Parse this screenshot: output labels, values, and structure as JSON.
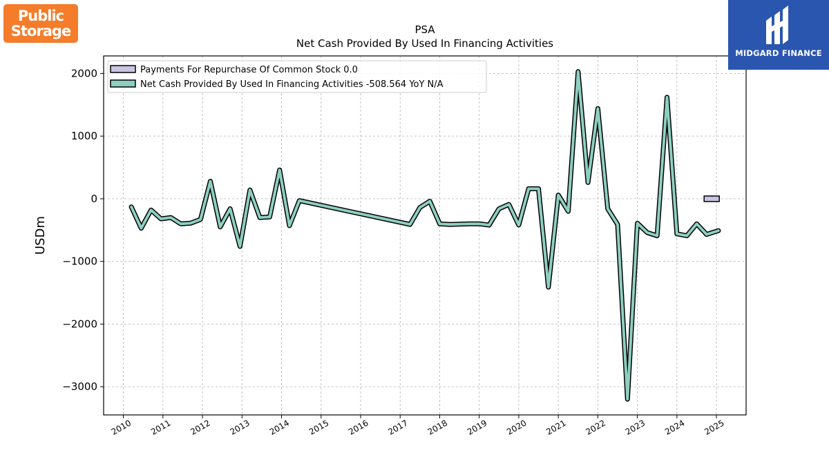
{
  "brand_left": {
    "line1": "Public",
    "line2": "Storage"
  },
  "brand_right": {
    "name": "MIDGARD FINANCE"
  },
  "chart_data": {
    "type": "line",
    "title": "PSA",
    "subtitle": "Net Cash Provided By Used In Financing Activities",
    "ylabel": "USDm",
    "xlabel": "",
    "ylim": [
      -3450,
      2280
    ],
    "xlim": [
      2009.5,
      2025.75
    ],
    "yticks": [
      2000,
      1000,
      0,
      -1000,
      -2000,
      -3000
    ],
    "ytick_labels": [
      "2000",
      "1000",
      "0",
      "−1000",
      "−2000",
      "−3000"
    ],
    "xticks": [
      2010,
      2011,
      2012,
      2013,
      2014,
      2015,
      2016,
      2017,
      2018,
      2019,
      2020,
      2021,
      2022,
      2023,
      2024,
      2025
    ],
    "xtick_labels": [
      "2010",
      "2011",
      "2012",
      "2013",
      "2014",
      "2015",
      "2016",
      "2017",
      "2018",
      "2019",
      "2020",
      "2021",
      "2022",
      "2023",
      "2024",
      "2025"
    ],
    "grid": true,
    "legend_position": "top-left",
    "legend": [
      "Payments For Repurchase Of Common Stock  0.0",
      "Net Cash Provided By Used In Financing Activities  -508.564 YoY N/A"
    ],
    "series": [
      {
        "name": "Payments For Repurchase Of Common Stock",
        "kind": "bar",
        "color": "#c8c4e2",
        "points": [
          {
            "x": 2024.88,
            "y": 0.0
          }
        ]
      },
      {
        "name": "Net Cash Provided By Used In Financing Activities",
        "kind": "line",
        "color": "#8ecfc0",
        "points": [
          {
            "x": 2010.2,
            "y": -130
          },
          {
            "x": 2010.45,
            "y": -470
          },
          {
            "x": 2010.7,
            "y": -180
          },
          {
            "x": 2010.95,
            "y": -320
          },
          {
            "x": 2011.2,
            "y": -300
          },
          {
            "x": 2011.45,
            "y": -400
          },
          {
            "x": 2011.7,
            "y": -390
          },
          {
            "x": 2011.95,
            "y": -330
          },
          {
            "x": 2012.2,
            "y": 280
          },
          {
            "x": 2012.45,
            "y": -450
          },
          {
            "x": 2012.7,
            "y": -160
          },
          {
            "x": 2012.95,
            "y": -760
          },
          {
            "x": 2013.2,
            "y": 140
          },
          {
            "x": 2013.45,
            "y": -300
          },
          {
            "x": 2013.7,
            "y": -290
          },
          {
            "x": 2013.95,
            "y": 460
          },
          {
            "x": 2014.2,
            "y": -430
          },
          {
            "x": 2014.45,
            "y": -30
          },
          {
            "x": 2017.25,
            "y": -410
          },
          {
            "x": 2017.5,
            "y": -140
          },
          {
            "x": 2017.75,
            "y": -40
          },
          {
            "x": 2018.0,
            "y": -400
          },
          {
            "x": 2018.25,
            "y": -410
          },
          {
            "x": 2018.75,
            "y": -400
          },
          {
            "x": 2019.0,
            "y": -400
          },
          {
            "x": 2019.25,
            "y": -420
          },
          {
            "x": 2019.5,
            "y": -160
          },
          {
            "x": 2019.75,
            "y": -90
          },
          {
            "x": 2020.0,
            "y": -420
          },
          {
            "x": 2020.25,
            "y": 160
          },
          {
            "x": 2020.5,
            "y": 160
          },
          {
            "x": 2020.75,
            "y": -1410
          },
          {
            "x": 2021.0,
            "y": 60
          },
          {
            "x": 2021.25,
            "y": -200
          },
          {
            "x": 2021.5,
            "y": 2030
          },
          {
            "x": 2021.75,
            "y": 260
          },
          {
            "x": 2022.0,
            "y": 1440
          },
          {
            "x": 2022.25,
            "y": -160
          },
          {
            "x": 2022.5,
            "y": -410
          },
          {
            "x": 2022.75,
            "y": -3200
          },
          {
            "x": 2023.0,
            "y": -390
          },
          {
            "x": 2023.25,
            "y": -540
          },
          {
            "x": 2023.5,
            "y": -590
          },
          {
            "x": 2023.75,
            "y": 1620
          },
          {
            "x": 2024.0,
            "y": -560
          },
          {
            "x": 2024.25,
            "y": -590
          },
          {
            "x": 2024.5,
            "y": -400
          },
          {
            "x": 2024.75,
            "y": -570
          },
          {
            "x": 2025.05,
            "y": -508.564
          }
        ]
      }
    ]
  }
}
